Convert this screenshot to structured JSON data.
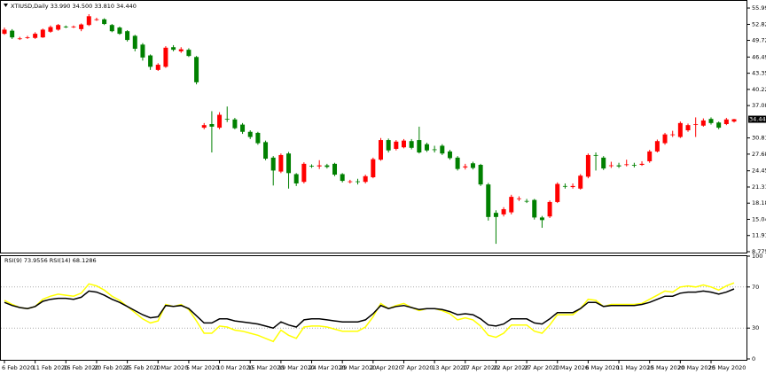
{
  "chart_data": [
    {
      "type": "candlestick",
      "title": "XTIUSD,Daily  33.990 34.500 33.810 34.440",
      "categories": [
        "6 Feb 2020",
        null,
        null,
        null,
        "11 Feb 2020",
        null,
        null,
        null,
        "16 Feb 2020",
        null,
        null,
        null,
        "20 Feb 2020",
        null,
        null,
        null,
        "25 Feb 2020",
        null,
        null,
        null,
        "1 Mar 2020",
        null,
        null,
        null,
        "5 Mar 2020",
        null,
        null,
        null,
        "10 Mar 2020",
        null,
        null,
        null,
        "15 Mar 2020",
        null,
        null,
        null,
        "19 Mar 2020",
        null,
        null,
        null,
        "24 Mar 2020",
        null,
        null,
        null,
        "29 Mar 2020",
        null,
        null,
        null,
        "2 Apr 2020",
        null,
        null,
        null,
        "7 Apr 2020",
        null,
        null,
        null,
        "13 Apr 2020",
        null,
        null,
        null,
        "17 Apr 2020",
        null,
        null,
        null,
        "22 Apr 2020",
        null,
        null,
        null,
        "27 Apr 2020",
        null,
        null,
        null,
        "1 May 2020",
        null,
        null,
        null,
        "6 May 2020",
        null,
        null,
        null,
        "11 May 2020",
        null,
        null,
        null,
        "15 May 2020",
        null,
        null,
        null,
        "20 May 2020",
        null,
        null,
        null,
        "25 May 2020",
        null,
        null,
        null
      ],
      "open": [
        51.0,
        51.6,
        50.0,
        50.2,
        50.2,
        50.3,
        51.4,
        51.8,
        52.4,
        52.3,
        51.9,
        52.7,
        53.7,
        53.8,
        52.7,
        52.2,
        51.5,
        50.6,
        48.9,
        46.8,
        44.0,
        44.6,
        48.4,
        47.6,
        47.9,
        46.5,
        32.8,
        33.5,
        32.8,
        34.5,
        34.4,
        33.4,
        32.0,
        31.8,
        30.0,
        27.0,
        24.3,
        27.8,
        23.8,
        22.3,
        25.4,
        25.3,
        25.5,
        25.8,
        23.8,
        22.3,
        22.4,
        22.3,
        23.2,
        26.6,
        30.4,
        28.7,
        29.0,
        30.2,
        30.4,
        29.6,
        28.6,
        29.3,
        28.2,
        27.0,
        25.1,
        25.9,
        25.6,
        21.8,
        16.3,
        16.0,
        16.4,
        19.0,
        18.6,
        18.8,
        15.4,
        15.6,
        18.4,
        21.5,
        21.3,
        21.0,
        23.3,
        27.5,
        27.0,
        25.4,
        25.5,
        25.6,
        25.6,
        25.6,
        26.3,
        28.2,
        29.8,
        31.4,
        31.0,
        32.3,
        33.4,
        33.2,
        34.5,
        33.8,
        33.5,
        33.99
      ],
      "high": [
        52.2,
        51.9,
        50.4,
        50.6,
        51.3,
        52.0,
        52.6,
        52.9,
        52.6,
        52.6,
        53.0,
        54.8,
        54.1,
        54.0,
        52.9,
        52.4,
        51.7,
        50.8,
        49.2,
        47.0,
        45.3,
        48.6,
        48.8,
        48.4,
        48.2,
        46.7,
        33.7,
        36.0,
        35.8,
        36.9,
        34.7,
        33.7,
        32.3,
        32.0,
        30.3,
        27.3,
        27.8,
        28.1,
        24.0,
        26.1,
        25.7,
        26.5,
        25.8,
        26.0,
        24.0,
        22.7,
        22.9,
        23.7,
        27.0,
        30.8,
        30.7,
        30.4,
        30.6,
        30.6,
        33.0,
        29.9,
        29.3,
        29.6,
        28.5,
        27.3,
        25.8,
        26.2,
        25.8,
        22.1,
        16.8,
        17.4,
        19.8,
        19.5,
        19.0,
        19.0,
        15.7,
        18.7,
        22.2,
        22.0,
        22.0,
        23.8,
        27.8,
        28.0,
        27.3,
        26.2,
        26.0,
        26.6,
        26.0,
        26.3,
        28.5,
        30.5,
        31.8,
        32.2,
        34.0,
        33.6,
        34.8,
        34.6,
        34.8,
        34.0,
        34.7,
        34.5
      ],
      "low": [
        50.8,
        50.0,
        49.8,
        50.0,
        50.0,
        50.2,
        51.2,
        51.6,
        52.1,
        52.1,
        51.5,
        52.5,
        53.5,
        52.7,
        51.3,
        50.8,
        49.5,
        47.6,
        45.8,
        44.0,
        43.8,
        44.4,
        47.6,
        47.3,
        46.5,
        41.2,
        32.5,
        28.0,
        32.5,
        33.9,
        32.5,
        31.6,
        30.6,
        29.5,
        26.5,
        21.6,
        24.0,
        21.0,
        21.5,
        22.0,
        25.0,
        24.8,
        24.9,
        23.4,
        22.2,
        22.0,
        21.8,
        22.0,
        23.0,
        26.4,
        28.0,
        28.4,
        28.8,
        28.6,
        27.8,
        28.1,
        28.0,
        27.5,
        26.6,
        24.5,
        24.7,
        24.7,
        21.5,
        14.8,
        10.3,
        15.6,
        16.0,
        18.6,
        18.2,
        15.0,
        13.4,
        15.3,
        18.2,
        21.0,
        21.0,
        20.8,
        23.0,
        24.5,
        24.6,
        25.0,
        25.0,
        25.3,
        25.1,
        25.4,
        26.0,
        28.0,
        29.5,
        31.0,
        30.8,
        32.0,
        31.0,
        33.0,
        33.4,
        32.5,
        33.3,
        33.81
      ],
      "close": [
        51.8,
        50.3,
        50.1,
        50.3,
        51.0,
        51.8,
        52.3,
        52.7,
        52.3,
        52.4,
        52.8,
        54.4,
        53.8,
        52.9,
        51.5,
        51.0,
        49.8,
        48.1,
        46.4,
        44.6,
        45.0,
        48.3,
        47.9,
        48.0,
        46.7,
        41.6,
        33.3,
        33.0,
        35.3,
        34.4,
        32.7,
        32.0,
        31.0,
        29.8,
        26.8,
        24.5,
        27.5,
        24.0,
        22.0,
        25.8,
        25.3,
        25.5,
        25.2,
        23.7,
        22.5,
        22.4,
        22.3,
        23.4,
        26.7,
        30.4,
        28.4,
        30.1,
        30.3,
        28.9,
        28.0,
        28.4,
        28.5,
        27.8,
        26.9,
        24.8,
        25.3,
        25.0,
        21.8,
        15.5,
        15.5,
        17.0,
        19.4,
        19.1,
        18.5,
        15.4,
        14.9,
        18.4,
        21.9,
        21.4,
        21.5,
        23.5,
        27.5,
        27.4,
        24.9,
        25.5,
        25.3,
        25.7,
        25.5,
        25.8,
        28.2,
        30.2,
        31.5,
        31.5,
        33.7,
        33.3,
        33.5,
        34.2,
        33.7,
        32.8,
        34.4,
        34.44
      ],
      "up_color": "#ff0000",
      "down_color": "#008000",
      "ylim": [
        8.6,
        57.2
      ],
      "yticks": [
        {
          "value": 55.99,
          "label": "55.990"
        },
        {
          "value": 52.825,
          "label": "52.825"
        },
        {
          "value": 49.725,
          "label": "49.725"
        },
        {
          "value": 46.49,
          "label": "46.490"
        },
        {
          "value": 43.355,
          "label": "43.355"
        },
        {
          "value": 40.22,
          "label": "40.220"
        },
        {
          "value": 37.085,
          "label": "37.085"
        },
        {
          "value": 30.815,
          "label": "30.815"
        },
        {
          "value": 27.68,
          "label": "27.680"
        },
        {
          "value": 24.45,
          "label": "24.450"
        },
        {
          "value": 21.31,
          "label": "21.310"
        },
        {
          "value": 18.18,
          "label": "18.180"
        },
        {
          "value": 15.045,
          "label": "15.045"
        },
        {
          "value": 11.91,
          "label": "11.910"
        },
        {
          "value": 8.775,
          "label": "8.775"
        }
      ],
      "last_price": {
        "value": 34.44,
        "label": "34.440"
      }
    },
    {
      "type": "line",
      "title": "RSI(9) 73.9556 RSI(14) 68.1286",
      "series": [
        {
          "color": "#ffff00",
          "values": [
            57,
            53,
            50,
            49,
            51,
            58,
            61,
            63,
            62,
            61,
            64,
            73,
            71,
            67,
            61,
            57,
            51,
            45,
            39,
            35,
            37,
            53,
            51,
            53,
            48,
            37,
            25,
            25,
            32,
            31,
            28,
            27,
            25,
            23,
            20,
            17,
            28,
            23,
            20,
            31,
            32,
            32,
            31,
            29,
            27,
            27,
            27,
            31,
            41,
            54,
            49,
            52,
            54,
            50,
            47,
            49,
            49,
            47,
            44,
            38,
            40,
            38,
            32,
            23,
            21,
            25,
            33,
            33,
            33,
            27,
            25,
            33,
            43,
            43,
            43,
            49,
            58,
            57,
            51,
            53,
            53,
            53,
            53,
            54,
            58,
            62,
            66,
            65,
            70,
            71,
            70,
            72,
            70,
            67,
            71,
            73.9556
          ]
        },
        {
          "color": "#000000",
          "values": [
            55,
            52,
            50,
            49,
            51,
            56,
            58,
            59,
            59,
            58,
            60,
            66,
            65,
            62,
            58,
            55,
            51,
            47,
            43,
            40,
            41,
            52,
            51,
            52,
            49,
            42,
            35,
            35,
            39,
            39,
            37,
            36,
            35,
            34,
            32,
            30,
            36,
            33,
            31,
            38,
            39,
            39,
            38,
            37,
            36,
            36,
            36,
            38,
            44,
            52,
            49,
            51,
            52,
            50,
            48,
            49,
            49,
            48,
            46,
            43,
            44,
            43,
            39,
            33,
            32,
            34,
            39,
            39,
            39,
            35,
            34,
            39,
            45,
            45,
            45,
            49,
            55,
            55,
            51,
            52,
            52,
            52,
            52,
            53,
            55,
            58,
            61,
            61,
            64,
            65,
            65,
            66,
            65,
            63,
            65,
            68.1286
          ]
        }
      ],
      "ylim": [
        0,
        100
      ],
      "yticks": [
        100,
        70,
        30,
        0
      ],
      "levels": [
        70,
        30
      ]
    }
  ]
}
